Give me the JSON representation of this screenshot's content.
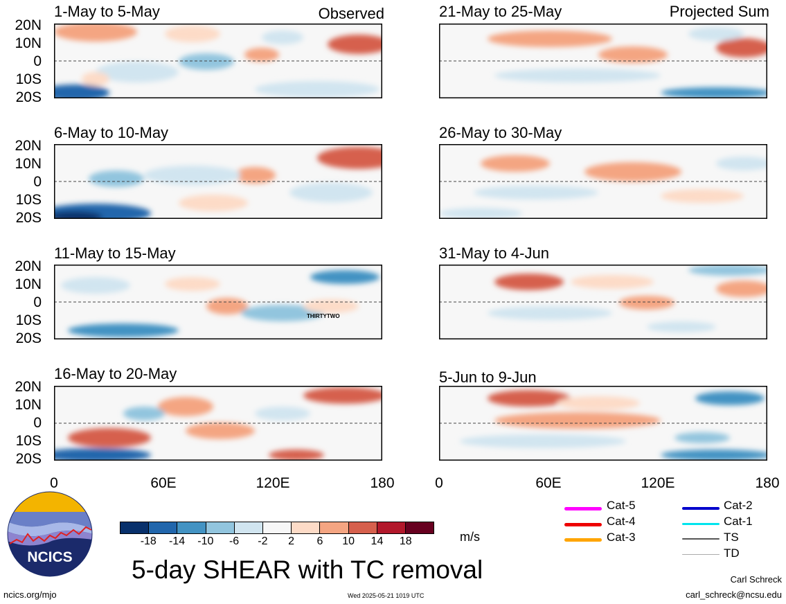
{
  "panels": [
    {
      "title": "1-May to 5-May",
      "corner": "Observed"
    },
    {
      "title": "6-May to 10-May",
      "corner": ""
    },
    {
      "title": "11-May to 15-May",
      "corner": ""
    },
    {
      "title": "16-May to 20-May",
      "corner": ""
    },
    {
      "title": "21-May to 25-May",
      "corner": "Projected Sum"
    },
    {
      "title": "26-May to 30-May",
      "corner": ""
    },
    {
      "title": "31-May to 4-Jun",
      "corner": ""
    },
    {
      "title": "5-Jun to 9-Jun",
      "corner": ""
    }
  ],
  "lat_labels": [
    "20N",
    "10N",
    "0",
    "10S",
    "20S"
  ],
  "lon_labels": [
    "0",
    "60E",
    "120E",
    "180"
  ],
  "storm_label": "THIRTYTWO",
  "colorbar": {
    "ticks": [
      "-18",
      "-14",
      "-10",
      "-6",
      "-2",
      "2",
      "6",
      "10",
      "14",
      "18"
    ],
    "colors": [
      "#08306b",
      "#2166ac",
      "#4393c3",
      "#92c5de",
      "#d1e5f0",
      "#f7f7f7",
      "#fddbc7",
      "#f4a582",
      "#d6604d",
      "#b2182b",
      "#67001f"
    ],
    "units": "m/s"
  },
  "title": "5-day SHEAR with TC removal",
  "logo_text": "NCICS",
  "footer": {
    "left": "ncics.org/mjo",
    "center": "Wed 2025-05-21 1019 UTC",
    "author": "Carl Schreck",
    "email": "carl_schreck@ncsu.edu"
  },
  "tc_legend": [
    {
      "label": "Cat-5",
      "color": "#ff00ff"
    },
    {
      "label": "Cat-4",
      "color": "#ee0000"
    },
    {
      "label": "Cat-3",
      "color": "#ffa500"
    },
    {
      "label": "Cat-2",
      "color": "#0000cc"
    },
    {
      "label": "Cat-1",
      "color": "#00e5ee"
    },
    {
      "label": "TS",
      "color": "#555555"
    },
    {
      "label": "TD",
      "color": "#aaaaaa"
    }
  ]
}
